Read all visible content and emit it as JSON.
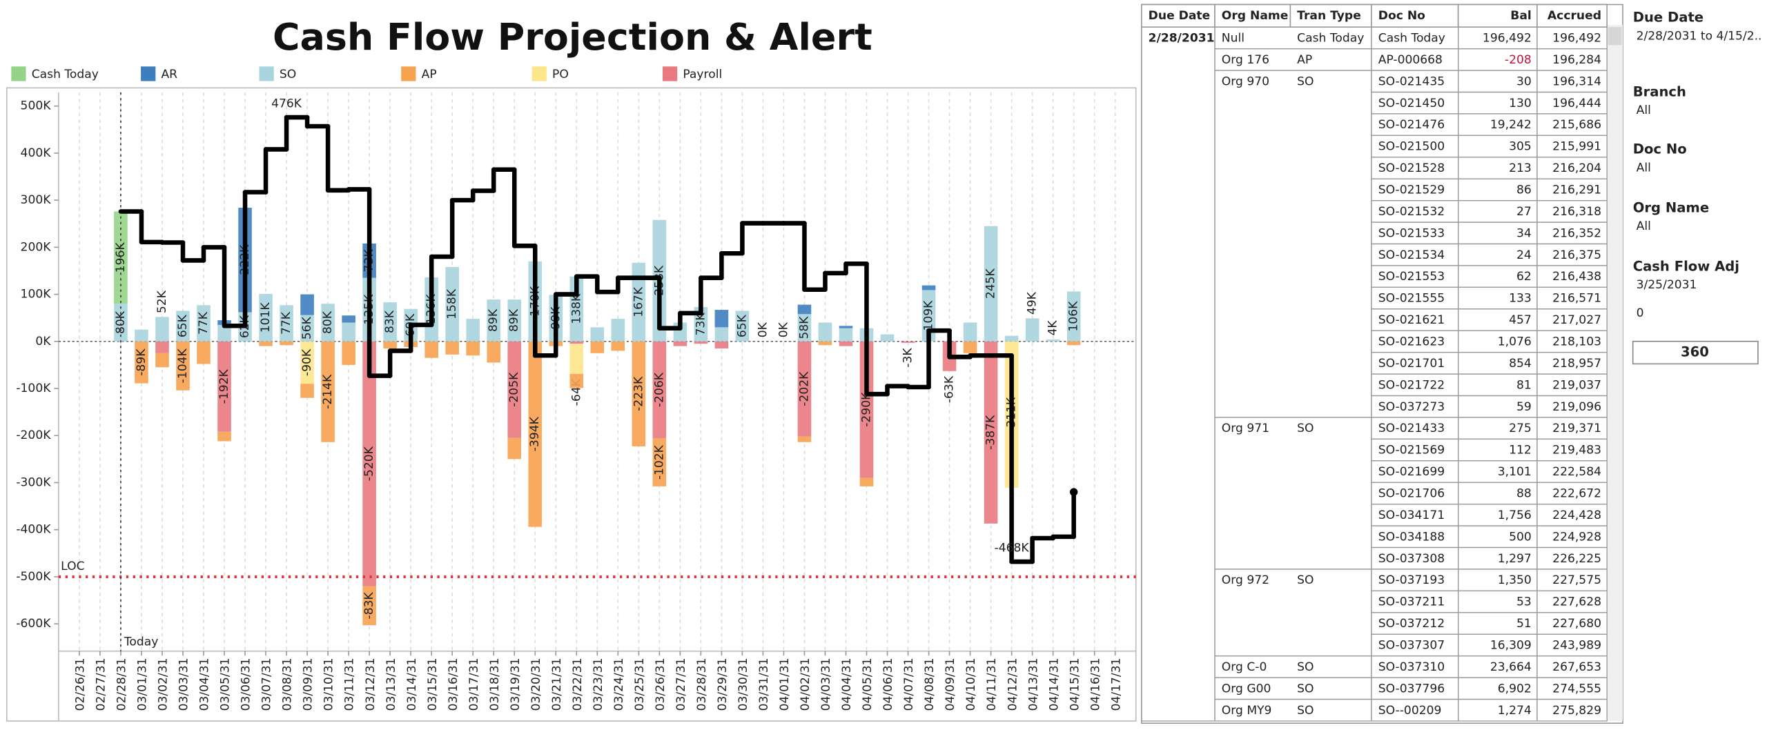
{
  "chart_data": {
    "type": "bar",
    "title": "Cash Flow Projection & Alert",
    "categories": [
      "02/26/31",
      "02/27/31",
      "02/28/31",
      "03/01/31",
      "03/02/31",
      "03/03/31",
      "03/04/31",
      "03/05/31",
      "03/06/31",
      "03/07/31",
      "03/08/31",
      "03/09/31",
      "03/10/31",
      "03/11/31",
      "03/12/31",
      "03/13/31",
      "03/14/31",
      "03/15/31",
      "03/16/31",
      "03/17/31",
      "03/18/31",
      "03/19/31",
      "03/20/31",
      "03/21/31",
      "03/22/31",
      "03/23/31",
      "03/24/31",
      "03/25/31",
      "03/26/31",
      "03/27/31",
      "03/28/31",
      "03/29/31",
      "03/30/31",
      "03/31/31",
      "04/01/31",
      "04/02/31",
      "04/03/31",
      "04/04/31",
      "04/05/31",
      "04/06/31",
      "04/07/31",
      "04/08/31",
      "04/09/31",
      "04/10/31",
      "04/11/31",
      "04/12/31",
      "04/13/31",
      "04/14/31",
      "04/15/31",
      "04/16/31",
      "04/17/31"
    ],
    "series": [
      {
        "name": "Cash Today",
        "color": "#93d487",
        "values": [
          null,
          null,
          196,
          null,
          null,
          null,
          null,
          null,
          null,
          null,
          null,
          null,
          null,
          null,
          null,
          null,
          null,
          null,
          null,
          null,
          null,
          null,
          null,
          null,
          null,
          null,
          null,
          null,
          null,
          null,
          null,
          null,
          null,
          null,
          null,
          null,
          null,
          null,
          null,
          null,
          null,
          null,
          null,
          null,
          null,
          null,
          null,
          null,
          null,
          null,
          null
        ],
        "value_labels": [
          null,
          null,
          "196K",
          null,
          null,
          null,
          null,
          null,
          null,
          null,
          null,
          null,
          null,
          null,
          null,
          null,
          null,
          null,
          null,
          null,
          null,
          null,
          null,
          null,
          null,
          null,
          null,
          null,
          null,
          null,
          null,
          null,
          null,
          null,
          null,
          null,
          null,
          null,
          null,
          null,
          null,
          null,
          null,
          null,
          null,
          null,
          null,
          null,
          null,
          null,
          null
        ]
      },
      {
        "name": "AR",
        "color": "#3d7ebf",
        "values": [
          null,
          null,
          null,
          null,
          null,
          null,
          null,
          10,
          222,
          null,
          null,
          44,
          null,
          15,
          73,
          null,
          null,
          null,
          null,
          null,
          null,
          null,
          null,
          null,
          null,
          null,
          null,
          null,
          null,
          null,
          null,
          37,
          null,
          null,
          null,
          20,
          null,
          5,
          null,
          null,
          null,
          10,
          null,
          null,
          null,
          null,
          null,
          null,
          null,
          null,
          null
        ],
        "value_labels": [
          null,
          null,
          null,
          null,
          null,
          null,
          null,
          null,
          "222K",
          null,
          null,
          null,
          null,
          null,
          "73K",
          null,
          null,
          null,
          null,
          null,
          null,
          null,
          null,
          null,
          null,
          null,
          null,
          null,
          null,
          null,
          null,
          null,
          null,
          null,
          null,
          null,
          null,
          null,
          null,
          null,
          null,
          null,
          null,
          null,
          null,
          null,
          null,
          null,
          null,
          null,
          null
        ]
      },
      {
        "name": "SO",
        "color": "#a9d4dd",
        "values": [
          null,
          null,
          80,
          25,
          52,
          65,
          77,
          35,
          62,
          101,
          77,
          56,
          80,
          40,
          135,
          83,
          69,
          136,
          158,
          48,
          89,
          89,
          170,
          99,
          138,
          30,
          48,
          167,
          258,
          40,
          73,
          30,
          65,
          0,
          0,
          58,
          40,
          28,
          28,
          15,
          null,
          109,
          null,
          40,
          245,
          12,
          49,
          4,
          106,
          null,
          null
        ],
        "value_labels": [
          null,
          null,
          "80K",
          null,
          "52K",
          "65K",
          "77K",
          null,
          "62K",
          "101K",
          "77K",
          "56K",
          "80K",
          null,
          "135K",
          "83K",
          "69K",
          "136K",
          "158K",
          null,
          "89K",
          "89K",
          "170K",
          "99K",
          "138K",
          null,
          null,
          "167K",
          "258K",
          null,
          "73K",
          null,
          "65K",
          "0K",
          "0K",
          "58K",
          null,
          null,
          null,
          null,
          null,
          "109K",
          null,
          null,
          "245K",
          null,
          "49K",
          "4K",
          "106K",
          null,
          null
        ]
      },
      {
        "name": "AP",
        "color": "#f7a24f",
        "values": [
          null,
          null,
          null,
          -89,
          -30,
          -104,
          -48,
          -20,
          null,
          -10,
          -8,
          -30,
          -214,
          -50,
          -83,
          -15,
          -12,
          -35,
          -28,
          -30,
          -45,
          -45,
          -394,
          -10,
          -30,
          -25,
          -20,
          -223,
          -102,
          null,
          null,
          null,
          null,
          null,
          null,
          -12,
          -8,
          null,
          -18,
          null,
          null,
          null,
          null,
          -25,
          null,
          null,
          null,
          null,
          -8,
          null,
          null
        ],
        "value_labels": [
          null,
          null,
          null,
          "-89K",
          null,
          "-104K",
          null,
          null,
          null,
          null,
          null,
          null,
          "-214K",
          null,
          "-83K",
          null,
          null,
          null,
          null,
          null,
          null,
          null,
          "-394K",
          null,
          null,
          null,
          null,
          "-223K",
          "-102K",
          null,
          null,
          null,
          null,
          null,
          null,
          null,
          null,
          null,
          null,
          null,
          null,
          null,
          null,
          null,
          null,
          null,
          null,
          null,
          null,
          null,
          null
        ]
      },
      {
        "name": "PO",
        "color": "#fde58a",
        "values": [
          null,
          null,
          null,
          null,
          null,
          null,
          null,
          null,
          null,
          null,
          null,
          -90,
          null,
          null,
          null,
          null,
          null,
          null,
          null,
          null,
          null,
          null,
          null,
          null,
          -64,
          null,
          null,
          null,
          null,
          null,
          null,
          null,
          null,
          null,
          null,
          null,
          null,
          null,
          null,
          null,
          null,
          null,
          null,
          null,
          null,
          -311,
          null,
          null,
          null,
          null,
          null
        ],
        "value_labels": [
          null,
          null,
          null,
          null,
          null,
          null,
          null,
          null,
          null,
          null,
          null,
          "-90K",
          null,
          null,
          null,
          null,
          null,
          null,
          null,
          null,
          null,
          null,
          null,
          null,
          "-64K",
          null,
          null,
          null,
          null,
          null,
          null,
          null,
          null,
          null,
          null,
          null,
          null,
          null,
          null,
          null,
          null,
          null,
          null,
          null,
          null,
          "-311K",
          null,
          null,
          null,
          null,
          null
        ]
      },
      {
        "name": "Payroll",
        "color": "#e8797f",
        "values": [
          null,
          null,
          null,
          null,
          -25,
          null,
          null,
          -192,
          null,
          null,
          null,
          null,
          null,
          null,
          -520,
          null,
          null,
          null,
          null,
          null,
          null,
          -205,
          null,
          null,
          -5,
          null,
          null,
          null,
          -206,
          -10,
          -5,
          -15,
          null,
          null,
          null,
          -202,
          null,
          -10,
          -290,
          null,
          -3,
          null,
          -63,
          null,
          -387,
          null,
          null,
          null,
          null,
          null,
          null
        ],
        "value_labels": [
          null,
          null,
          null,
          null,
          null,
          null,
          null,
          "-192K",
          null,
          null,
          null,
          null,
          null,
          null,
          "-520K",
          null,
          null,
          null,
          null,
          null,
          null,
          "-205K",
          null,
          null,
          null,
          null,
          null,
          null,
          "-206K",
          null,
          null,
          null,
          null,
          null,
          null,
          "-202K",
          null,
          null,
          "-290K",
          null,
          "-3K",
          null,
          "-63K",
          null,
          "-387K",
          null,
          null,
          null,
          null,
          null,
          null
        ]
      }
    ],
    "balance": {
      "color": "#000000",
      "values": [
        null,
        null,
        276,
        211,
        210,
        172,
        200,
        33,
        317,
        408,
        476,
        457,
        321,
        323,
        -73,
        -20,
        35,
        180,
        300,
        320,
        365,
        203,
        -30,
        100,
        138,
        105,
        135,
        135,
        28,
        60,
        135,
        187,
        251,
        251,
        251,
        110,
        145,
        165,
        -112,
        -95,
        -97,
        23,
        -33,
        -30,
        -30,
        -468,
        -418,
        -415,
        -320,
        null,
        null
      ],
      "value_labels": [
        null,
        null,
        null,
        null,
        null,
        null,
        null,
        null,
        null,
        null,
        "476K",
        null,
        null,
        null,
        null,
        null,
        null,
        null,
        null,
        null,
        null,
        null,
        null,
        null,
        null,
        null,
        null,
        null,
        null,
        null,
        null,
        null,
        null,
        null,
        null,
        null,
        null,
        null,
        null,
        null,
        null,
        null,
        null,
        null,
        null,
        "-468K",
        null,
        null,
        null,
        null,
        null
      ]
    },
    "loc": {
      "label": "LOC",
      "value": -500,
      "color": "#e0363a"
    },
    "today": {
      "label": "Today",
      "category": "02/28/31"
    },
    "ylim": [
      -658,
      529
    ],
    "yticks": [
      {
        "value": -600,
        "label": "-600K"
      },
      {
        "value": -500,
        "label": "-500K"
      },
      {
        "value": -400,
        "label": "-400K"
      },
      {
        "value": -300,
        "label": "-300K"
      },
      {
        "value": -200,
        "label": "-200K"
      },
      {
        "value": -100,
        "label": "-100K"
      },
      {
        "value": 0,
        "label": "0K"
      },
      {
        "value": 100,
        "label": "100K"
      },
      {
        "value": 200,
        "label": "200K"
      },
      {
        "value": 300,
        "label": "300K"
      },
      {
        "value": 400,
        "label": "400K"
      },
      {
        "value": 500,
        "label": "500K"
      }
    ],
    "grid": true
  },
  "table": {
    "columns": [
      "Due Date",
      "Org Name",
      "Tran Type",
      "Doc No",
      "Bal",
      "Accrued"
    ],
    "negative_color": "#c0143c",
    "groups": [
      {
        "due_date": "2/28/2031",
        "orgs": [
          {
            "org_name": "Null",
            "tran_type": "Cash Today",
            "docs": [
              [
                "Cash Today",
                "196,492",
                "196,492"
              ]
            ]
          },
          {
            "org_name": "Org 176",
            "tran_type": "AP",
            "docs": [
              [
                "AP-000668",
                "-208",
                "196,284"
              ]
            ]
          },
          {
            "org_name": "Org 970",
            "tran_type": "SO",
            "docs": [
              [
                "SO-021435",
                "30",
                "196,314"
              ],
              [
                "SO-021450",
                "130",
                "196,444"
              ],
              [
                "SO-021476",
                "19,242",
                "215,686"
              ],
              [
                "SO-021500",
                "305",
                "215,991"
              ],
              [
                "SO-021528",
                "213",
                "216,204"
              ],
              [
                "SO-021529",
                "86",
                "216,291"
              ],
              [
                "SO-021532",
                "27",
                "216,318"
              ],
              [
                "SO-021533",
                "34",
                "216,352"
              ],
              [
                "SO-021534",
                "24",
                "216,375"
              ],
              [
                "SO-021553",
                "62",
                "216,438"
              ],
              [
                "SO-021555",
                "133",
                "216,571"
              ],
              [
                "SO-021621",
                "457",
                "217,027"
              ],
              [
                "SO-021623",
                "1,076",
                "218,103"
              ],
              [
                "SO-021701",
                "854",
                "218,957"
              ],
              [
                "SO-021722",
                "81",
                "219,037"
              ],
              [
                "SO-037273",
                "59",
                "219,096"
              ]
            ]
          },
          {
            "org_name": "Org 971",
            "tran_type": "SO",
            "docs": [
              [
                "SO-021433",
                "275",
                "219,371"
              ],
              [
                "SO-021569",
                "112",
                "219,483"
              ],
              [
                "SO-021699",
                "3,101",
                "222,584"
              ],
              [
                "SO-021706",
                "88",
                "222,672"
              ],
              [
                "SO-034171",
                "1,756",
                "224,428"
              ],
              [
                "SO-034188",
                "500",
                "224,928"
              ],
              [
                "SO-037308",
                "1,297",
                "226,225"
              ]
            ]
          },
          {
            "org_name": "Org 972",
            "tran_type": "SO",
            "docs": [
              [
                "SO-037193",
                "1,350",
                "227,575"
              ],
              [
                "SO-037211",
                "53",
                "227,628"
              ],
              [
                "SO-037212",
                "51",
                "227,680"
              ],
              [
                "SO-037307",
                "16,309",
                "243,989"
              ]
            ]
          },
          {
            "org_name": "Org C-0",
            "tran_type": "SO",
            "docs": [
              [
                "SO-037310",
                "23,664",
                "267,653"
              ]
            ]
          },
          {
            "org_name": "Org G00",
            "tran_type": "SO",
            "docs": [
              [
                "SO-037796",
                "6,902",
                "274,555"
              ]
            ]
          },
          {
            "org_name": "Org MY9",
            "tran_type": "SO",
            "docs": [
              [
                "SO--00209",
                "1,274",
                "275,829"
              ]
            ]
          }
        ]
      }
    ]
  },
  "filters": [
    {
      "title": "Due Date",
      "value": "2/28/2031 to 4/15/2.."
    },
    {
      "title": "Branch",
      "value": "All"
    },
    {
      "title": "Doc No",
      "value": "All"
    },
    {
      "title": "Org Name",
      "value": "All"
    },
    {
      "title": "Cash Flow Adj",
      "value": "3/25/2031"
    }
  ],
  "adjustment": {
    "amount": "0",
    "result": "360"
  }
}
